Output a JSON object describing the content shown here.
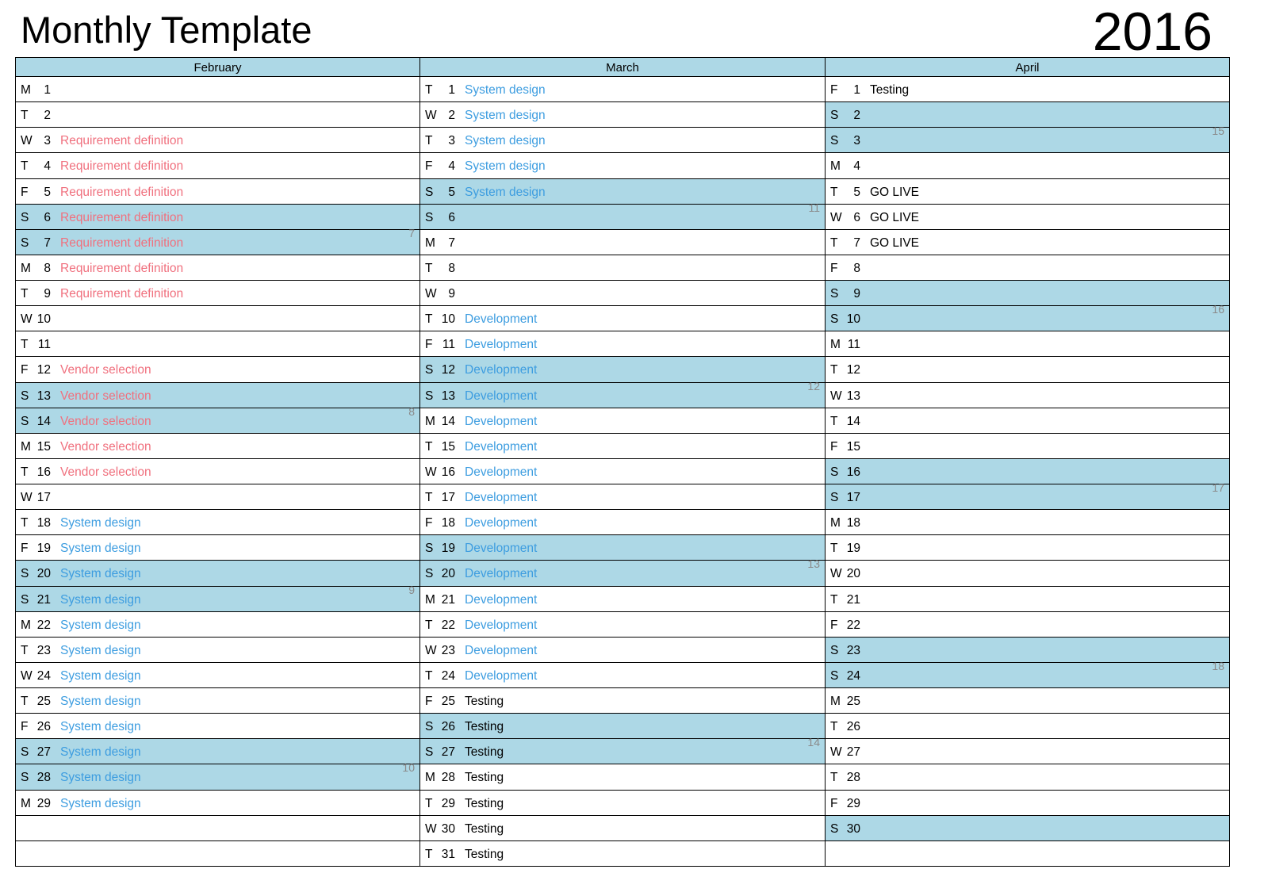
{
  "title": "Monthly Template",
  "year": "2016",
  "colors": {
    "weekend": "#add8e6",
    "red": "#f0707e",
    "blue": "#3d9de0",
    "black": "#000000",
    "week_number": "#8a8a8a"
  },
  "row_format": [
    "day_letter",
    "date",
    "event",
    "event_color",
    "week_number"
  ],
  "months": [
    {
      "name": "February",
      "rows": [
        [
          "M",
          "1",
          "",
          "",
          ""
        ],
        [
          "T",
          "2",
          "",
          "",
          ""
        ],
        [
          "W",
          "3",
          "Requirement definition",
          "red",
          ""
        ],
        [
          "T",
          "4",
          "Requirement definition",
          "red",
          ""
        ],
        [
          "F",
          "5",
          "Requirement definition",
          "red",
          ""
        ],
        [
          "S",
          "6",
          "Requirement definition",
          "red",
          ""
        ],
        [
          "S",
          "7",
          "Requirement definition",
          "red",
          "7"
        ],
        [
          "M",
          "8",
          "Requirement definition",
          "red",
          ""
        ],
        [
          "T",
          "9",
          "Requirement definition",
          "red",
          ""
        ],
        [
          "W",
          "10",
          "",
          "",
          ""
        ],
        [
          "T",
          "11",
          "",
          "",
          ""
        ],
        [
          "F",
          "12",
          "Vendor selection",
          "red",
          ""
        ],
        [
          "S",
          "13",
          "Vendor selection",
          "red",
          ""
        ],
        [
          "S",
          "14",
          "Vendor selection",
          "red",
          "8"
        ],
        [
          "M",
          "15",
          "Vendor selection",
          "red",
          ""
        ],
        [
          "T",
          "16",
          "Vendor selection",
          "red",
          ""
        ],
        [
          "W",
          "17",
          "",
          "",
          ""
        ],
        [
          "T",
          "18",
          "System design",
          "blue",
          ""
        ],
        [
          "F",
          "19",
          "System design",
          "blue",
          ""
        ],
        [
          "S",
          "20",
          "System design",
          "blue",
          ""
        ],
        [
          "S",
          "21",
          "System design",
          "blue",
          "9"
        ],
        [
          "M",
          "22",
          "System design",
          "blue",
          ""
        ],
        [
          "T",
          "23",
          "System design",
          "blue",
          ""
        ],
        [
          "W",
          "24",
          "System design",
          "blue",
          ""
        ],
        [
          "T",
          "25",
          "System design",
          "blue",
          ""
        ],
        [
          "F",
          "26",
          "System design",
          "blue",
          ""
        ],
        [
          "S",
          "27",
          "System design",
          "blue",
          ""
        ],
        [
          "S",
          "28",
          "System design",
          "blue",
          "10"
        ],
        [
          "M",
          "29",
          "System design",
          "blue",
          ""
        ],
        [
          "",
          "",
          "",
          "",
          ""
        ],
        [
          "",
          "",
          "",
          "",
          ""
        ]
      ]
    },
    {
      "name": "March",
      "rows": [
        [
          "T",
          "1",
          "System design",
          "blue",
          ""
        ],
        [
          "W",
          "2",
          "System design",
          "blue",
          ""
        ],
        [
          "T",
          "3",
          "System design",
          "blue",
          ""
        ],
        [
          "F",
          "4",
          "System design",
          "blue",
          ""
        ],
        [
          "S",
          "5",
          "System design",
          "blue",
          ""
        ],
        [
          "S",
          "6",
          "",
          "",
          "11"
        ],
        [
          "M",
          "7",
          "",
          "",
          ""
        ],
        [
          "T",
          "8",
          "",
          "",
          ""
        ],
        [
          "W",
          "9",
          "",
          "",
          ""
        ],
        [
          "T",
          "10",
          "Development",
          "blue",
          ""
        ],
        [
          "F",
          "11",
          "Development",
          "blue",
          ""
        ],
        [
          "S",
          "12",
          "Development",
          "blue",
          ""
        ],
        [
          "S",
          "13",
          "Development",
          "blue",
          "12"
        ],
        [
          "M",
          "14",
          "Development",
          "blue",
          ""
        ],
        [
          "T",
          "15",
          "Development",
          "blue",
          ""
        ],
        [
          "W",
          "16",
          "Development",
          "blue",
          ""
        ],
        [
          "T",
          "17",
          "Development",
          "blue",
          ""
        ],
        [
          "F",
          "18",
          "Development",
          "blue",
          ""
        ],
        [
          "S",
          "19",
          "Development",
          "blue",
          ""
        ],
        [
          "S",
          "20",
          "Development",
          "blue",
          "13"
        ],
        [
          "M",
          "21",
          "Development",
          "blue",
          ""
        ],
        [
          "T",
          "22",
          "Development",
          "blue",
          ""
        ],
        [
          "W",
          "23",
          "Development",
          "blue",
          ""
        ],
        [
          "T",
          "24",
          "Development",
          "blue",
          ""
        ],
        [
          "F",
          "25",
          "Testing",
          "black",
          ""
        ],
        [
          "S",
          "26",
          "Testing",
          "black",
          ""
        ],
        [
          "S",
          "27",
          "Testing",
          "black",
          "14"
        ],
        [
          "M",
          "28",
          "Testing",
          "black",
          ""
        ],
        [
          "T",
          "29",
          "Testing",
          "black",
          ""
        ],
        [
          "W",
          "30",
          "Testing",
          "black",
          ""
        ],
        [
          "T",
          "31",
          "Testing",
          "black",
          ""
        ]
      ]
    },
    {
      "name": "April",
      "rows": [
        [
          "F",
          "1",
          "Testing",
          "black",
          ""
        ],
        [
          "S",
          "2",
          "",
          "",
          ""
        ],
        [
          "S",
          "3",
          "",
          "",
          "15"
        ],
        [
          "M",
          "4",
          "",
          "",
          ""
        ],
        [
          "T",
          "5",
          "GO LIVE",
          "black",
          ""
        ],
        [
          "W",
          "6",
          "GO LIVE",
          "black",
          ""
        ],
        [
          "T",
          "7",
          "GO LIVE",
          "black",
          ""
        ],
        [
          "F",
          "8",
          "",
          "",
          ""
        ],
        [
          "S",
          "9",
          "",
          "",
          ""
        ],
        [
          "S",
          "10",
          "",
          "",
          "16"
        ],
        [
          "M",
          "11",
          "",
          "",
          ""
        ],
        [
          "T",
          "12",
          "",
          "",
          ""
        ],
        [
          "W",
          "13",
          "",
          "",
          ""
        ],
        [
          "T",
          "14",
          "",
          "",
          ""
        ],
        [
          "F",
          "15",
          "",
          "",
          ""
        ],
        [
          "S",
          "16",
          "",
          "",
          ""
        ],
        [
          "S",
          "17",
          "",
          "",
          "17"
        ],
        [
          "M",
          "18",
          "",
          "",
          ""
        ],
        [
          "T",
          "19",
          "",
          "",
          ""
        ],
        [
          "W",
          "20",
          "",
          "",
          ""
        ],
        [
          "T",
          "21",
          "",
          "",
          ""
        ],
        [
          "F",
          "22",
          "",
          "",
          ""
        ],
        [
          "S",
          "23",
          "",
          "",
          ""
        ],
        [
          "S",
          "24",
          "",
          "",
          "18"
        ],
        [
          "M",
          "25",
          "",
          "",
          ""
        ],
        [
          "T",
          "26",
          "",
          "",
          ""
        ],
        [
          "W",
          "27",
          "",
          "",
          ""
        ],
        [
          "T",
          "28",
          "",
          "",
          ""
        ],
        [
          "F",
          "29",
          "",
          "",
          ""
        ],
        [
          "S",
          "30",
          "",
          "",
          ""
        ],
        [
          "",
          "",
          "",
          "",
          ""
        ]
      ]
    }
  ]
}
